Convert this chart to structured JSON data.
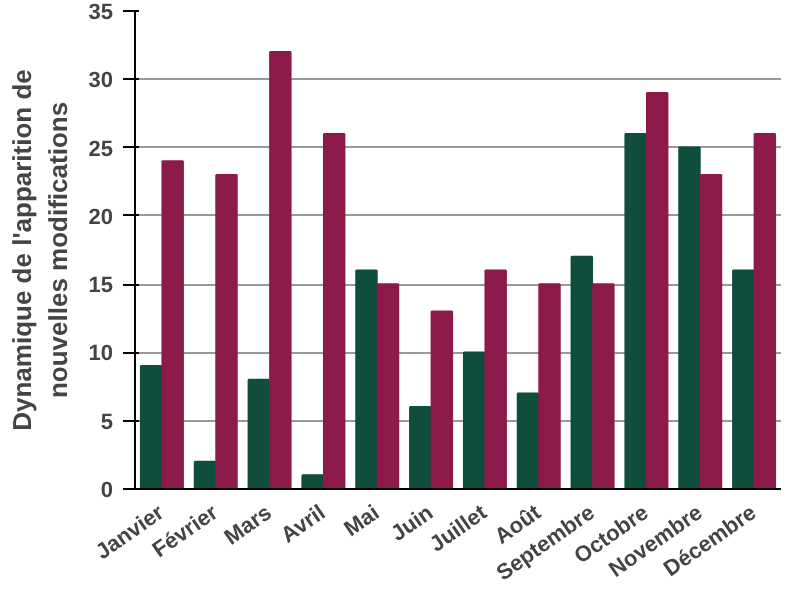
{
  "chart_data": {
    "type": "bar",
    "ylabel": "Dynamique de l'apparition de nouvelles modifications",
    "categories": [
      "Janvier",
      "Février",
      "Mars",
      "Avril",
      "Mai",
      "Juin",
      "Juillet",
      "Août",
      "Septembre",
      "Octobre",
      "Novembre",
      "Décembre"
    ],
    "series": [
      {
        "color": "#0f4d3c",
        "values": [
          9,
          2,
          8,
          1,
          16,
          6,
          10,
          7,
          17,
          26,
          25,
          16
        ]
      },
      {
        "color": "#8c1a4b",
        "values": [
          24,
          23,
          32,
          26,
          15,
          13,
          16,
          15,
          15,
          29,
          23,
          26
        ]
      }
    ],
    "ylim": [
      0,
      35
    ],
    "yticks": [
      0,
      5,
      10,
      15,
      20,
      25,
      30,
      35
    ],
    "grid": "y"
  }
}
